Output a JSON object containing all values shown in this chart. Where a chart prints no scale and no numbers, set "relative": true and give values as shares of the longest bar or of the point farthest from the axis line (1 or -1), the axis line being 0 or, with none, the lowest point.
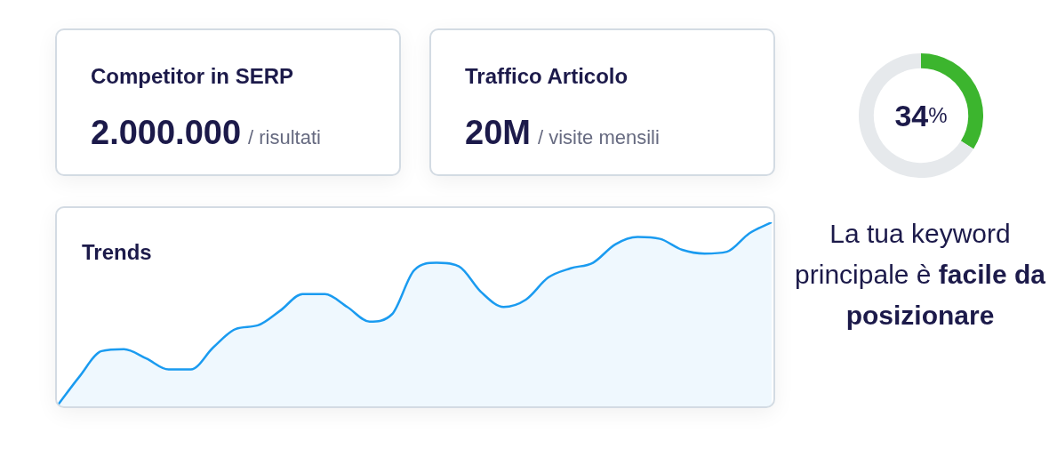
{
  "chart_data": [
    {
      "type": "other",
      "title": "Competitor in SERP",
      "annotations": [
        "2.000.000",
        "/ risultati"
      ]
    },
    {
      "type": "other",
      "title": "Traffico Articolo",
      "annotations": [
        "20M",
        "/ visite mensili"
      ]
    },
    {
      "type": "donut",
      "categories": [
        null,
        null
      ],
      "values": [
        34,
        66
      ],
      "colors": [
        "#3cb52e",
        "#e6e9ec"
      ],
      "value_labels": [
        "34%",
        null
      ],
      "annotations": [
        "La tua keyword principale è",
        "facile da posizionare"
      ]
    },
    {
      "type": "area",
      "title": "Trends",
      "relative": true,
      "categories": [
        null,
        null,
        null,
        null,
        null,
        null,
        null,
        null,
        null,
        null,
        null,
        null,
        null,
        null,
        null,
        null,
        null,
        null,
        null,
        null,
        null,
        null,
        null,
        null,
        null,
        null,
        null,
        null,
        null,
        null,
        null,
        null,
        null
      ],
      "series": [
        {
          "color": "#1a9bf0",
          "values": [
            0,
            0.16,
            0.3,
            0.31,
            0.26,
            0.2,
            0.2,
            0.32,
            0.42,
            0.44,
            0.52,
            0.61,
            0.61,
            0.54,
            0.46,
            0.5,
            0.74,
            0.78,
            0.76,
            0.62,
            0.54,
            0.58,
            0.7,
            0.75,
            0.78,
            0.88,
            0.92,
            0.91,
            0.85,
            0.83,
            0.84,
            0.94,
            1
          ]
        }
      ]
    }
  ]
}
